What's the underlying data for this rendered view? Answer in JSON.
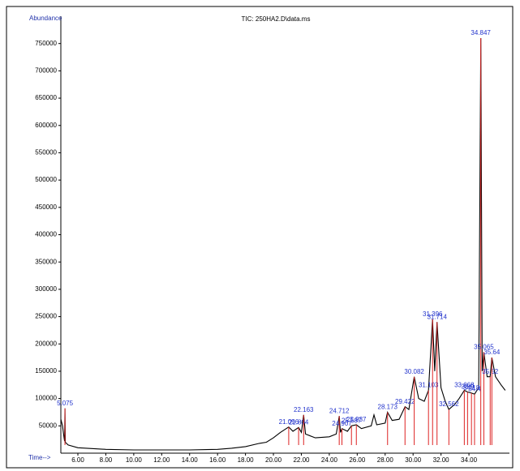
{
  "chart_data": {
    "type": "line",
    "title": "TIC: 250HA2.D\\data.ms",
    "y_label": "Abundance",
    "x_label": "Time-->",
    "xlim": [
      4.78,
      36.9
    ],
    "ylim": [
      0,
      800000
    ],
    "xticks": [
      {
        "value": 6,
        "label": "6.00"
      },
      {
        "value": 8,
        "label": "8.00"
      },
      {
        "value": 10,
        "label": "10.00"
      },
      {
        "value": 12,
        "label": "12.00"
      },
      {
        "value": 14,
        "label": "14.00"
      },
      {
        "value": 16,
        "label": "16.00"
      },
      {
        "value": 18,
        "label": "18.00"
      },
      {
        "value": 20,
        "label": "20.00"
      },
      {
        "value": 22,
        "label": "22.00"
      },
      {
        "value": 24,
        "label": "24.00"
      },
      {
        "value": 26,
        "label": "26.00"
      },
      {
        "value": 28,
        "label": "28.00"
      },
      {
        "value": 30,
        "label": "30.00"
      },
      {
        "value": 32,
        "label": "32.00"
      },
      {
        "value": 34,
        "label": "34.00"
      }
    ],
    "yticks": [
      50000,
      100000,
      150000,
      200000,
      250000,
      300000,
      350000,
      400000,
      450000,
      500000,
      550000,
      600000,
      650000,
      700000,
      750000
    ],
    "color": "#000000",
    "x": [
      4.78,
      4.9,
      5.0,
      5.05,
      5.075,
      5.1,
      5.3,
      6,
      8,
      10,
      12,
      14,
      16,
      17,
      18,
      19,
      19.5,
      20,
      20.5,
      21.096,
      21.4,
      21.804,
      22,
      22.163,
      22.3,
      23,
      24,
      24.5,
      24.712,
      24.8,
      24.907,
      25.3,
      25.587,
      25.937,
      26.3,
      27,
      27.2,
      27.4,
      28,
      28.173,
      28.5,
      29,
      29.422,
      29.7,
      30.082,
      30.4,
      30.8,
      31.103,
      31.396,
      31.55,
      31.714,
      32,
      32.3,
      32.562,
      33,
      33.3,
      33.668,
      33.9,
      34.18,
      34.4,
      34.7,
      34.847,
      34.95,
      35.065,
      35.3,
      35.52,
      35.64,
      35.9,
      36.3,
      36.6
    ],
    "values": [
      62000,
      50000,
      30000,
      22000,
      82000,
      20000,
      15000,
      10000,
      7000,
      6000,
      6000,
      6000,
      7000,
      9000,
      12000,
      18000,
      20000,
      28000,
      38000,
      48000,
      40000,
      47000,
      38000,
      70000,
      35000,
      28000,
      30000,
      35000,
      68000,
      38000,
      45000,
      40000,
      50000,
      52000,
      45000,
      50000,
      70000,
      52000,
      55000,
      75000,
      60000,
      62000,
      85000,
      80000,
      140000,
      100000,
      95000,
      115000,
      245000,
      150000,
      240000,
      120000,
      95000,
      80000,
      90000,
      100000,
      115000,
      112000,
      110000,
      108000,
      120000,
      760000,
      150000,
      185000,
      140000,
      140000,
      175000,
      140000,
      125000,
      115000
    ],
    "peaks": {
      "color": "#dd2222",
      "label_color": "#2233cc",
      "x": [
        5.075,
        21.096,
        21.804,
        22.163,
        24.712,
        24.907,
        25.587,
        25.937,
        28.173,
        29.422,
        30.082,
        31.103,
        31.396,
        31.714,
        32.562,
        33.668,
        33.9,
        34.18,
        34.4,
        34.847,
        35.065,
        35.52,
        35.64
      ],
      "values": [
        82000,
        48000,
        47000,
        70000,
        68000,
        45000,
        50000,
        52000,
        75000,
        85000,
        140000,
        115000,
        245000,
        240000,
        80000,
        115000,
        112000,
        110000,
        108000,
        760000,
        185000,
        140000,
        175000
      ]
    }
  }
}
